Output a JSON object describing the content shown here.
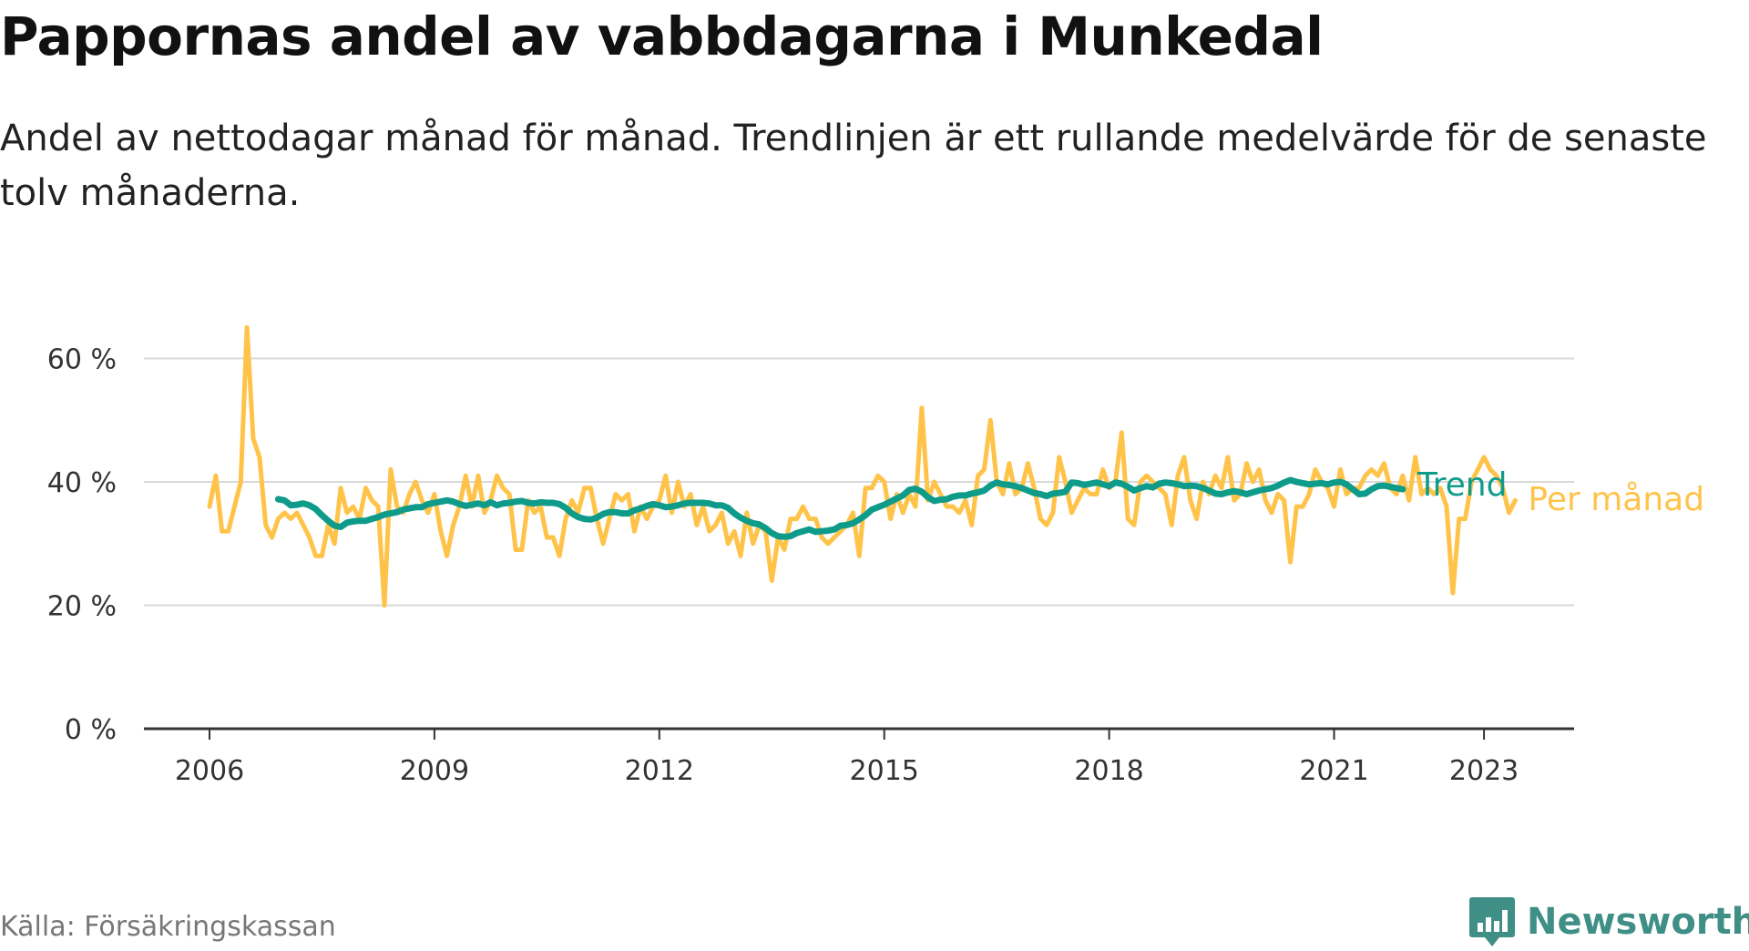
{
  "header": {
    "title": "Pappornas andel av vabbdagarna i Munkedal",
    "subtitle": "Andel av nettodagar månad för månad. Trendlinjen är ett rullande medelvärde för de senaste tolv månaderna."
  },
  "footer": {
    "source": "Källa: Försäkringskassan",
    "brand": "Newsworthy",
    "brand_icon": "bar-chart-badge-icon"
  },
  "colors": {
    "monthly": "#FFC349",
    "trend": "#0E9B8A",
    "grid": "#D9D9D9",
    "axis": "#333333",
    "brand": "#3F8F86"
  },
  "chart_data": {
    "type": "line",
    "title": "Pappornas andel av vabbdagarna i Munkedal",
    "subtitle": "Andel av nettodagar månad för månad. Trendlinjen är ett rullande medelvärde för de senaste tolv månaderna.",
    "xlabel": "",
    "ylabel": "",
    "ylim": [
      0,
      70
    ],
    "yticks": [
      0,
      20,
      40,
      60
    ],
    "ytick_labels": [
      "0 %",
      "20 %",
      "40 %",
      "60 %"
    ],
    "xlim": [
      "2005-09",
      "2024-10"
    ],
    "xticks": [
      "2006-01",
      "2009-01",
      "2012-01",
      "2015-01",
      "2018-01",
      "2021-01",
      "2023-01"
    ],
    "xtick_labels": [
      "2006",
      "2009",
      "2012",
      "2015",
      "2018",
      "2021",
      "2023"
    ],
    "grid": true,
    "legend": "inline labels at line ends",
    "series": [
      {
        "name": "Per månad",
        "color": "#FFC349",
        "start": "2006-01",
        "values": [
          36,
          41,
          32,
          32,
          36,
          40,
          65,
          47,
          44,
          33,
          31,
          34,
          35,
          34,
          35,
          33,
          31,
          28,
          28,
          33,
          30,
          39,
          35,
          36,
          34,
          39,
          37,
          36,
          20,
          42,
          36,
          35,
          38,
          40,
          37,
          35,
          38,
          32,
          28,
          33,
          36,
          41,
          36,
          41,
          35,
          37,
          41,
          39,
          38,
          29,
          29,
          37,
          35,
          36,
          31,
          31,
          28,
          34,
          37,
          35,
          39,
          39,
          34,
          30,
          34,
          38,
          37,
          38,
          32,
          36,
          34,
          36,
          37,
          41,
          35,
          40,
          36,
          38,
          33,
          36,
          32,
          33,
          35,
          30,
          32,
          28,
          35,
          30,
          33,
          32,
          24,
          31,
          29,
          34,
          34,
          36,
          34,
          34,
          31,
          30,
          31,
          32,
          33,
          35,
          28,
          39,
          39,
          41,
          40,
          34,
          38,
          35,
          38,
          36,
          52,
          37,
          40,
          38,
          36,
          36,
          35,
          37,
          33,
          41,
          42,
          50,
          40,
          38,
          43,
          38,
          39,
          43,
          39,
          34,
          33,
          35,
          44,
          40,
          35,
          37,
          39,
          38,
          38,
          42,
          39,
          40,
          48,
          34,
          33,
          40,
          41,
          40,
          39,
          38,
          33,
          41,
          44,
          37,
          34,
          40,
          38,
          41,
          39,
          44,
          37,
          38,
          43,
          40,
          42,
          37,
          35,
          38,
          37,
          27,
          36,
          36,
          38,
          42,
          40,
          39,
          36,
          42,
          38,
          39,
          39,
          41,
          42,
          41,
          43,
          39,
          38,
          41,
          37,
          44,
          38,
          39,
          38,
          39,
          36,
          22,
          34,
          34,
          40,
          42,
          44,
          42,
          41,
          39,
          35,
          37
        ]
      },
      {
        "name": "Trend",
        "color": "#0E9B8A",
        "start": "2006-12",
        "values": [
          37.2,
          37.0,
          36.2,
          36.3,
          36.5,
          36.2,
          35.6,
          34.6,
          33.7,
          32.9,
          32.7,
          33.4,
          33.6,
          33.7,
          33.7,
          34.0,
          34.3,
          34.7,
          34.9,
          35.1,
          35.5,
          35.7,
          35.9,
          35.9,
          36.4,
          36.6,
          36.8,
          37.0,
          36.8,
          36.4,
          36.1,
          36.3,
          36.5,
          36.2,
          36.7,
          36.2,
          36.5,
          36.6,
          36.8,
          36.9,
          36.6,
          36.5,
          36.7,
          36.6,
          36.6,
          36.4,
          35.8,
          34.9,
          34.3,
          34.0,
          33.9,
          34.2,
          34.8,
          35.1,
          35.1,
          34.9,
          34.9,
          35.4,
          35.7,
          36.1,
          36.4,
          36.2,
          35.9,
          36.0,
          36.2,
          36.5,
          36.6,
          36.6,
          36.6,
          36.5,
          36.2,
          36.2,
          35.8,
          34.9,
          34.2,
          33.7,
          33.3,
          33.1,
          32.5,
          31.7,
          31.2,
          31.1,
          31.2,
          31.7,
          32.0,
          32.3,
          31.9,
          32.0,
          32.1,
          32.3,
          32.9,
          33.0,
          33.3,
          33.9,
          34.6,
          35.5,
          35.9,
          36.3,
          36.8,
          37.3,
          37.8,
          38.7,
          38.9,
          38.4,
          37.5,
          36.9,
          37.1,
          37.2,
          37.6,
          37.8,
          37.8,
          38.1,
          38.3,
          38.6,
          39.4,
          39.9,
          39.6,
          39.5,
          39.3,
          39.0,
          38.6,
          38.2,
          38.0,
          37.7,
          38.1,
          38.2,
          38.4,
          39.9,
          39.8,
          39.5,
          39.7,
          39.9,
          39.6,
          39.3,
          39.9,
          39.7,
          39.2,
          38.6,
          39.0,
          39.3,
          39.1,
          39.7,
          39.9,
          39.8,
          39.6,
          39.3,
          39.4,
          39.3,
          39.0,
          38.6,
          38.1,
          38.0,
          38.3,
          38.5,
          38.3,
          38.0,
          38.3,
          38.6,
          38.8,
          39.0,
          39.4,
          39.9,
          40.3,
          40.0,
          39.8,
          39.6,
          39.7,
          39.8,
          39.6,
          39.9,
          40.0,
          39.6,
          38.8,
          38.0,
          38.1,
          38.8,
          39.3,
          39.4,
          39.2,
          39.0,
          38.8
        ]
      }
    ]
  }
}
